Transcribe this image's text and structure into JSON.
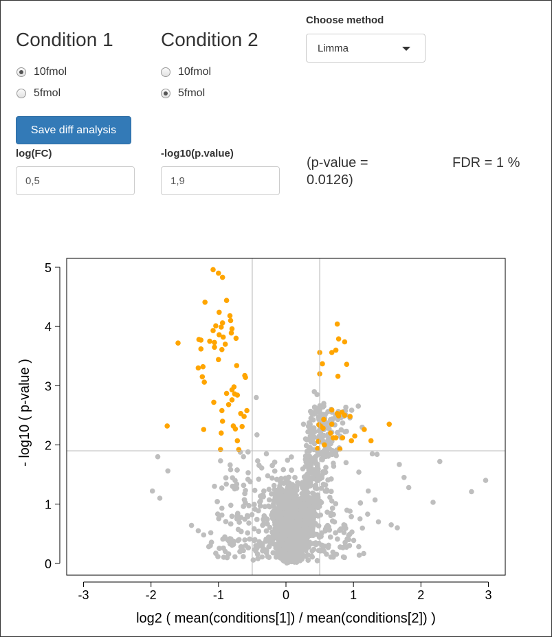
{
  "condition1": {
    "title": "Condition 1",
    "options": [
      {
        "label": "10fmol",
        "checked": true
      },
      {
        "label": "5fmol",
        "checked": false
      }
    ]
  },
  "condition2": {
    "title": "Condition 2",
    "options": [
      {
        "label": "10fmol",
        "checked": false
      },
      {
        "label": "5fmol",
        "checked": true
      }
    ]
  },
  "method": {
    "label": "Choose method",
    "selected": "Limma"
  },
  "save_button": "Save diff analysis",
  "logfc": {
    "label": "log(FC)",
    "value": "0,5"
  },
  "pval": {
    "label": "-log10(p.value)",
    "value": "1,9"
  },
  "pvalue_text_line1": "(p-value =",
  "pvalue_text_line2": "0.0126)",
  "fdr_text": "FDR = 1 %",
  "colors": {
    "significant": "#FFA500",
    "non_significant": "#BEBEBE",
    "button": "#337ab7"
  },
  "chart_data": {
    "type": "scatter",
    "title": "",
    "xlabel": "log2 ( mean(conditions[1]) / mean(conditions[2]) )",
    "ylabel": "- log10 ( p-value )",
    "xlim": [
      -3.25,
      3.25
    ],
    "ylim": [
      -0.2,
      5.15
    ],
    "xticks": [
      -3,
      -2,
      -1,
      0,
      1,
      2,
      3
    ],
    "yticks": [
      0,
      1,
      2,
      3,
      4,
      5
    ],
    "threshold_lines": {
      "x": [
        -0.5,
        0.5
      ],
      "y": 1.9
    },
    "grid": false,
    "series": [
      {
        "color": "#FFA500",
        "points": [
          [
            -1.08,
            4.96
          ],
          [
            -1.0,
            4.9
          ],
          [
            -0.94,
            4.83
          ],
          [
            -0.88,
            4.44
          ],
          [
            -1.2,
            4.41
          ],
          [
            -0.99,
            4.24
          ],
          [
            -0.83,
            4.18
          ],
          [
            -0.82,
            4.1
          ],
          [
            -0.94,
            4.06
          ],
          [
            -1.04,
            4.01
          ],
          [
            -0.96,
            3.99
          ],
          [
            -0.8,
            3.96
          ],
          [
            -0.81,
            3.89
          ],
          [
            -1.08,
            3.93
          ],
          [
            -0.99,
            3.86
          ],
          [
            -0.93,
            3.82
          ],
          [
            -0.74,
            3.8
          ],
          [
            -1.29,
            3.78
          ],
          [
            -1.26,
            3.77
          ],
          [
            -1.13,
            3.75
          ],
          [
            -1.06,
            3.73
          ],
          [
            -1.6,
            3.72
          ],
          [
            -0.9,
            3.7
          ],
          [
            -1.06,
            3.65
          ],
          [
            -1.26,
            3.62
          ],
          [
            -0.95,
            3.61
          ],
          [
            -1.0,
            3.44
          ],
          [
            -0.73,
            3.34
          ],
          [
            -1.3,
            3.3
          ],
          [
            -1.23,
            3.32
          ],
          [
            -1.24,
            3.15
          ],
          [
            -0.61,
            3.17
          ],
          [
            -0.6,
            3.14
          ],
          [
            -1.21,
            3.06
          ],
          [
            -0.77,
            2.98
          ],
          [
            -0.8,
            2.93
          ],
          [
            -0.88,
            2.87
          ],
          [
            -0.76,
            2.86
          ],
          [
            -0.72,
            2.84
          ],
          [
            -0.8,
            2.76
          ],
          [
            -1.07,
            2.72
          ],
          [
            -0.85,
            2.68
          ],
          [
            -0.95,
            2.58
          ],
          [
            -0.67,
            2.53
          ],
          [
            -0.58,
            2.58
          ],
          [
            -0.62,
            2.48
          ],
          [
            -0.94,
            2.4
          ],
          [
            -0.78,
            2.32
          ],
          [
            -0.75,
            2.27
          ],
          [
            -1.76,
            2.32
          ],
          [
            -1.22,
            2.26
          ],
          [
            -0.65,
            2.31
          ],
          [
            -0.96,
            2.2
          ],
          [
            -0.72,
            2.07
          ],
          [
            -0.7,
            1.92
          ],
          [
            -0.97,
            1.92
          ],
          [
            0.76,
            4.04
          ],
          [
            0.78,
            3.79
          ],
          [
            0.87,
            3.74
          ],
          [
            0.5,
            3.56
          ],
          [
            0.74,
            3.6
          ],
          [
            0.68,
            3.56
          ],
          [
            0.9,
            3.36
          ],
          [
            0.54,
            3.37
          ],
          [
            0.77,
            3.16
          ],
          [
            0.5,
            3.2
          ],
          [
            0.68,
            2.59
          ],
          [
            0.83,
            2.55
          ],
          [
            0.76,
            2.53
          ],
          [
            0.87,
            2.5
          ],
          [
            0.95,
            2.48
          ],
          [
            0.78,
            2.49
          ],
          [
            0.56,
            2.43
          ],
          [
            0.49,
            2.34
          ],
          [
            0.68,
            2.35
          ],
          [
            0.52,
            2.31
          ],
          [
            0.55,
            2.28
          ],
          [
            1.16,
            2.26
          ],
          [
            1.53,
            2.35
          ],
          [
            0.66,
            2.2
          ],
          [
            0.84,
            2.12
          ],
          [
            0.74,
            2.12
          ],
          [
            0.7,
            2.12
          ],
          [
            1.02,
            2.15
          ],
          [
            1.26,
            2.07
          ],
          [
            0.48,
            2.06
          ],
          [
            0.97,
            2.07
          ],
          [
            0.47,
            1.94
          ],
          [
            0.57,
            2.0
          ],
          [
            0.8,
            1.93
          ]
        ]
      },
      {
        "color": "#BEBEBE",
        "points": [
          [
            -1.9,
            1.8
          ],
          [
            -1.75,
            1.56
          ],
          [
            -1.98,
            1.22
          ],
          [
            -1.87,
            1.1
          ],
          [
            2.28,
            1.72
          ],
          [
            2.18,
            1.03
          ],
          [
            2.96,
            1.4
          ],
          [
            2.75,
            1.21
          ],
          [
            1.68,
            1.67
          ],
          [
            1.75,
            1.45
          ],
          [
            1.82,
            1.28
          ],
          [
            1.56,
            0.65
          ],
          [
            1.65,
            0.6
          ],
          [
            1.37,
            0.7
          ],
          [
            1.21,
            0.83
          ],
          [
            1.32,
            1.07
          ],
          [
            1.28,
            1.85
          ],
          [
            1.35,
            1.84
          ],
          [
            -0.63,
            1.8
          ],
          [
            -0.42,
            1.73
          ],
          [
            -0.97,
            1.73
          ],
          [
            -1.4,
            0.64
          ],
          [
            -1.3,
            0.55
          ],
          [
            -1.22,
            0.48
          ],
          [
            -0.82,
            1.58
          ],
          [
            -0.53,
            1.38
          ],
          [
            -0.6,
            1.23
          ],
          [
            -1.06,
            1.3
          ],
          [
            -0.95,
            0.93
          ],
          [
            -0.68,
            0.77
          ],
          [
            -0.44,
            2.8
          ],
          [
            -0.43,
            2.17
          ],
          [
            -0.29,
            1.85
          ],
          [
            -0.36,
            1.61
          ],
          [
            -0.56,
            1.53
          ],
          [
            -0.9,
            0.2
          ],
          [
            -0.68,
            0.2
          ],
          [
            -0.85,
            0.38
          ],
          [
            -0.46,
            0.4
          ],
          [
            -0.55,
            0.68
          ],
          [
            0.29,
            2.1
          ],
          [
            0.37,
            2.45
          ],
          [
            0.46,
            2.85
          ],
          [
            0.42,
            2.9
          ],
          [
            0.26,
            2.35
          ],
          [
            0.53,
            2.05
          ],
          [
            0.89,
            1.7
          ],
          [
            1.08,
            1.54
          ],
          [
            1.22,
            1.22
          ],
          [
            0.95,
            0.88
          ],
          [
            0.86,
            0.52
          ],
          [
            0.93,
            0.4
          ]
        ]
      }
    ],
    "gray_cloud": {
      "count": 3200,
      "color": "#BEBEBE"
    }
  }
}
